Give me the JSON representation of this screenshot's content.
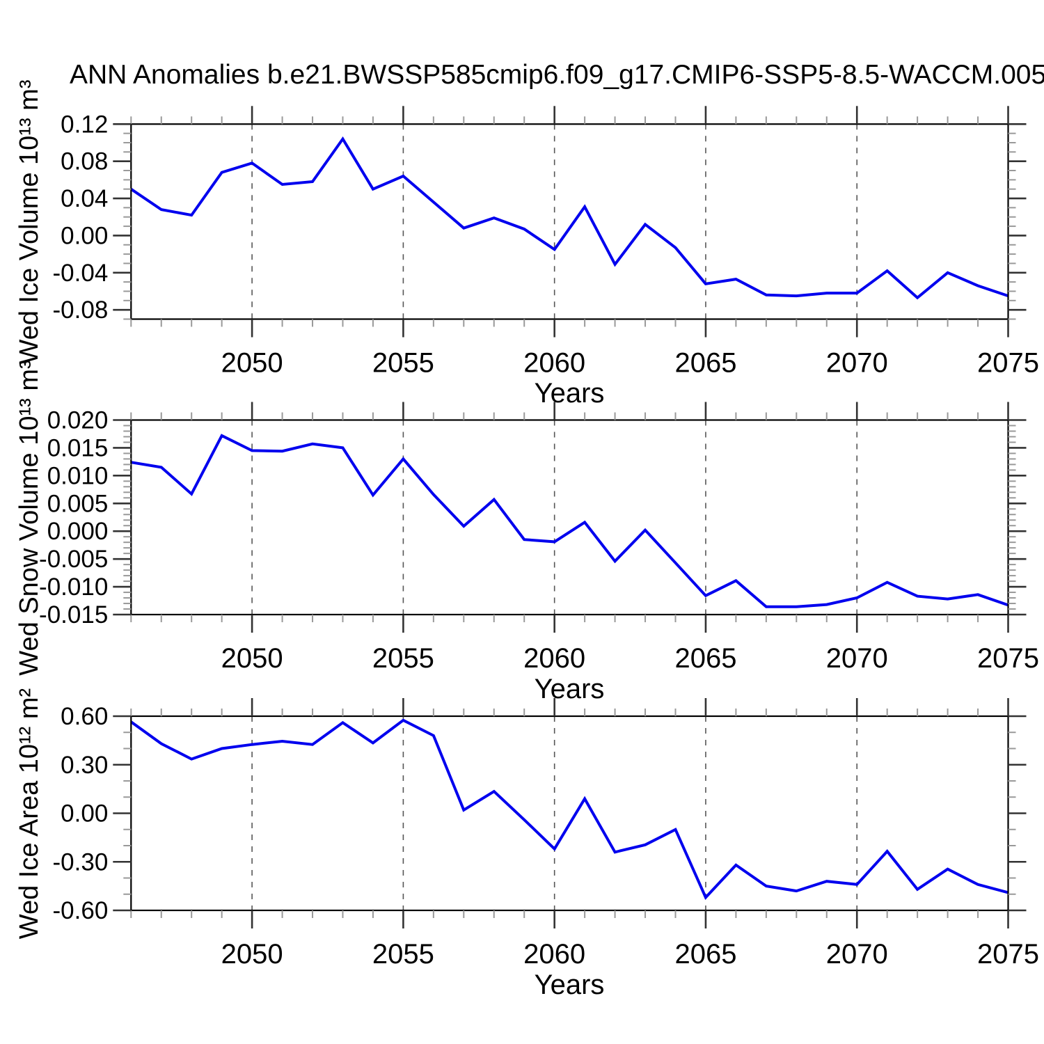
{
  "title": "ANN Anomalies b.e21.BWSSP585cmip6.f09_g17.CMIP6-SSP5-8.5-WACCM.005",
  "style": {
    "line_color": "#0000ee",
    "frame_color": "#000000",
    "major_tick_color": "#333333",
    "minor_tick_color": "#999999",
    "grid_color": "#555555",
    "text_color": "#000000"
  },
  "x_axis": {
    "label": "Years",
    "start_year": 2046,
    "end_year": 2075,
    "major_tick_years": [
      2050,
      2055,
      2060,
      2065,
      2070,
      2075
    ],
    "major_tick_labels": [
      "2050",
      "2055",
      "2060",
      "2065",
      "2070",
      "2075"
    ],
    "gridline_years": [
      2050,
      2055,
      2060,
      2065,
      2070
    ]
  },
  "chart_data": [
    {
      "type": "line",
      "ylabel": "Wed Ice Volume 10¹³ m³",
      "xlabel": "Years",
      "x": [
        2046,
        2047,
        2048,
        2049,
        2050,
        2051,
        2052,
        2053,
        2054,
        2055,
        2056,
        2057,
        2058,
        2059,
        2060,
        2061,
        2062,
        2063,
        2064,
        2065,
        2066,
        2067,
        2068,
        2069,
        2070,
        2071,
        2072,
        2073,
        2074,
        2075
      ],
      "values": [
        0.05,
        0.028,
        0.022,
        0.068,
        0.078,
        0.055,
        0.058,
        0.104,
        0.05,
        0.064,
        0.036,
        0.008,
        0.019,
        0.007,
        -0.015,
        0.031,
        -0.031,
        0.012,
        -0.013,
        -0.052,
        -0.047,
        -0.064,
        -0.065,
        -0.062,
        -0.062,
        -0.038,
        -0.067,
        -0.04,
        -0.054,
        -0.065
      ],
      "ylim": [
        -0.09,
        0.12
      ],
      "ytick_major": [
        0.12,
        0.08,
        0.04,
        0.0,
        -0.04,
        -0.08
      ],
      "ytick_labels": [
        "0.12",
        "0.08",
        "0.04",
        "0.00",
        "-0.04",
        "-0.08"
      ],
      "ytick_minor_step": 0.01,
      "grid": "vertical-dashed",
      "legend": null
    },
    {
      "type": "line",
      "ylabel": "Wed Snow Volume 10¹³ m³",
      "xlabel": "Years",
      "x": [
        2046,
        2047,
        2048,
        2049,
        2050,
        2051,
        2052,
        2053,
        2054,
        2055,
        2056,
        2057,
        2058,
        2059,
        2060,
        2061,
        2062,
        2063,
        2064,
        2065,
        2066,
        2067,
        2068,
        2069,
        2070,
        2071,
        2072,
        2073,
        2074,
        2075
      ],
      "values": [
        0.0124,
        0.0115,
        0.0067,
        0.0172,
        0.0145,
        0.0144,
        0.0157,
        0.015,
        0.0065,
        0.013,
        0.0066,
        0.0009,
        0.0057,
        -0.0015,
        -0.0019,
        0.0016,
        -0.0054,
        0.0002,
        -0.0057,
        -0.0116,
        -0.0089,
        -0.0136,
        -0.0136,
        -0.0132,
        -0.012,
        -0.0092,
        -0.0117,
        -0.0122,
        -0.0114,
        -0.0133
      ],
      "ylim": [
        -0.015,
        0.02
      ],
      "ytick_major": [
        0.02,
        0.015,
        0.01,
        0.005,
        0.0,
        -0.005,
        -0.01,
        -0.015
      ],
      "ytick_labels": [
        "0.020",
        "0.015",
        "0.010",
        "0.005",
        "0.000",
        "-0.005",
        "-0.010",
        "-0.015"
      ],
      "ytick_minor_step": 0.001,
      "grid": "vertical-dashed",
      "legend": null
    },
    {
      "type": "line",
      "ylabel": "Wed Ice Area 10¹² m²",
      "xlabel": "Years",
      "x": [
        2046,
        2047,
        2048,
        2049,
        2050,
        2051,
        2052,
        2053,
        2054,
        2055,
        2056,
        2057,
        2058,
        2059,
        2060,
        2061,
        2062,
        2063,
        2064,
        2065,
        2066,
        2067,
        2068,
        2069,
        2070,
        2071,
        2072,
        2073,
        2074,
        2075
      ],
      "values": [
        0.565,
        0.43,
        0.335,
        0.4,
        0.425,
        0.445,
        0.425,
        0.56,
        0.435,
        0.575,
        0.48,
        0.02,
        0.135,
        -0.04,
        -0.22,
        0.09,
        -0.24,
        -0.195,
        -0.1,
        -0.52,
        -0.32,
        -0.45,
        -0.48,
        -0.42,
        -0.44,
        -0.235,
        -0.47,
        -0.345,
        -0.44,
        -0.49
      ],
      "ylim": [
        -0.6,
        0.6
      ],
      "ytick_major": [
        0.6,
        0.3,
        0.0,
        -0.3,
        -0.6
      ],
      "ytick_labels": [
        "0.60",
        "0.30",
        "0.00",
        "-0.30",
        "-0.60"
      ],
      "ytick_minor_step": 0.1,
      "grid": "vertical-dashed",
      "legend": null
    }
  ]
}
